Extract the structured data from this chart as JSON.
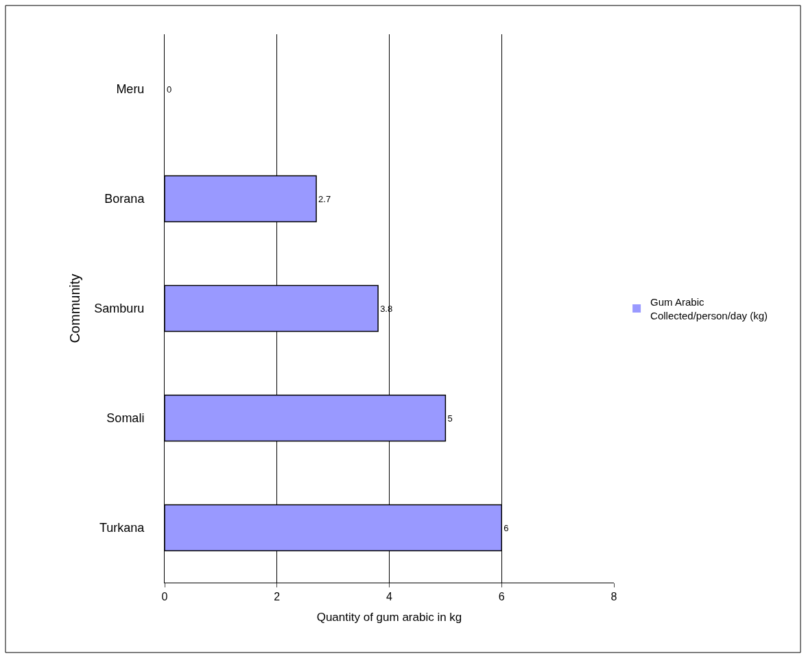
{
  "chart_data": {
    "type": "bar",
    "orientation": "horizontal",
    "xlabel": "Quantity of gum arabic in kg",
    "ylabel": "Community",
    "categories": [
      "Meru",
      "Borana",
      "Samburu",
      "Somali",
      "Turkana"
    ],
    "series": [
      {
        "name": "Gum Arabic\nCollected/person/day (kg)",
        "color": "#9999ff",
        "values": [
          0,
          2.7,
          3.8,
          5,
          6
        ]
      }
    ],
    "xlim": [
      0,
      8
    ],
    "xticks": [
      0,
      2,
      4,
      6,
      8
    ],
    "grid": "x",
    "legend": "right",
    "data_labels": true
  }
}
